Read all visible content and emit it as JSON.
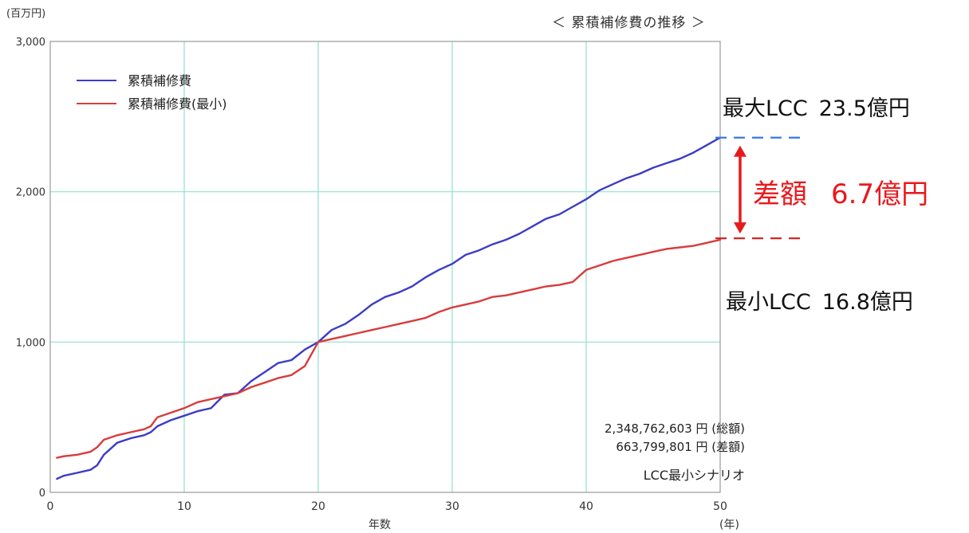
{
  "chart_data": {
    "type": "line",
    "title": "＜ 累積補修費の推移 ＞",
    "xlabel": "年数",
    "x_unit": "(年)",
    "y_unit": "(百万円)",
    "xlim": [
      0,
      50
    ],
    "ylim": [
      0,
      3000
    ],
    "x_ticks": [
      "0",
      "10",
      "20",
      "30",
      "40",
      "50"
    ],
    "y_ticks": [
      "0",
      "1,000",
      "2,000",
      "3,000"
    ],
    "grid": true,
    "legend_position": "top-left",
    "series": [
      {
        "name": "累積補修費",
        "color": "#3c3cc8",
        "x": [
          0.5,
          1,
          2,
          3,
          3.5,
          4,
          5,
          6,
          7,
          7.5,
          8,
          9,
          10,
          11,
          12,
          13,
          14,
          15,
          16,
          17,
          18,
          19,
          20,
          21,
          22,
          23,
          24,
          25,
          26,
          27,
          28,
          29,
          30,
          31,
          32,
          33,
          34,
          35,
          36,
          37,
          38,
          39,
          40,
          41,
          42,
          43,
          44,
          45,
          46,
          47,
          48,
          49,
          50
        ],
        "y": [
          90,
          110,
          130,
          150,
          180,
          250,
          330,
          360,
          380,
          400,
          440,
          480,
          510,
          540,
          560,
          650,
          660,
          740,
          800,
          860,
          880,
          950,
          1000,
          1080,
          1120,
          1180,
          1250,
          1300,
          1330,
          1370,
          1430,
          1480,
          1520,
          1580,
          1610,
          1650,
          1680,
          1720,
          1770,
          1820,
          1850,
          1900,
          1950,
          2010,
          2050,
          2090,
          2120,
          2160,
          2190,
          2220,
          2260,
          2310,
          2360
        ]
      },
      {
        "name": "累積補修費(最小)",
        "color": "#d83c3c",
        "x": [
          0.5,
          1,
          2,
          3,
          3.5,
          4,
          5,
          6,
          7,
          7.5,
          8,
          9,
          10,
          11,
          12,
          13,
          14,
          15,
          16,
          17,
          18,
          19,
          20,
          21,
          22,
          23,
          24,
          25,
          26,
          27,
          28,
          29,
          30,
          31,
          32,
          33,
          34,
          35,
          36,
          37,
          38,
          39,
          40,
          41,
          42,
          43,
          44,
          45,
          46,
          47,
          48,
          49,
          50
        ],
        "y": [
          230,
          240,
          250,
          270,
          300,
          350,
          380,
          400,
          420,
          440,
          500,
          530,
          560,
          600,
          620,
          640,
          660,
          700,
          730,
          760,
          780,
          840,
          1000,
          1020,
          1040,
          1060,
          1080,
          1100,
          1120,
          1140,
          1160,
          1200,
          1230,
          1250,
          1270,
          1300,
          1310,
          1330,
          1350,
          1370,
          1380,
          1400,
          1480,
          1510,
          1540,
          1560,
          1580,
          1600,
          1620,
          1630,
          1640,
          1660,
          1680
        ]
      }
    ],
    "annotations": {
      "max_label": "最大LCC",
      "max_value": "23.5億円",
      "max_level": 2360,
      "min_label": "最小LCC",
      "min_value": "16.8億円",
      "min_level": 1690,
      "diff_label": "差額",
      "diff_value": "6.7億円"
    },
    "notes": {
      "total": "2,348,762,603 円 (総額)",
      "difference": "663,799,801 円 (差額)",
      "scenario": "LCC最小シナリオ"
    }
  },
  "colors": {
    "grid": "#8fe0d0",
    "axis": "#9a9a9a",
    "max_dash": "#3a78e0",
    "min_dash": "#d02828",
    "diff_arrow": "#e8191d"
  }
}
